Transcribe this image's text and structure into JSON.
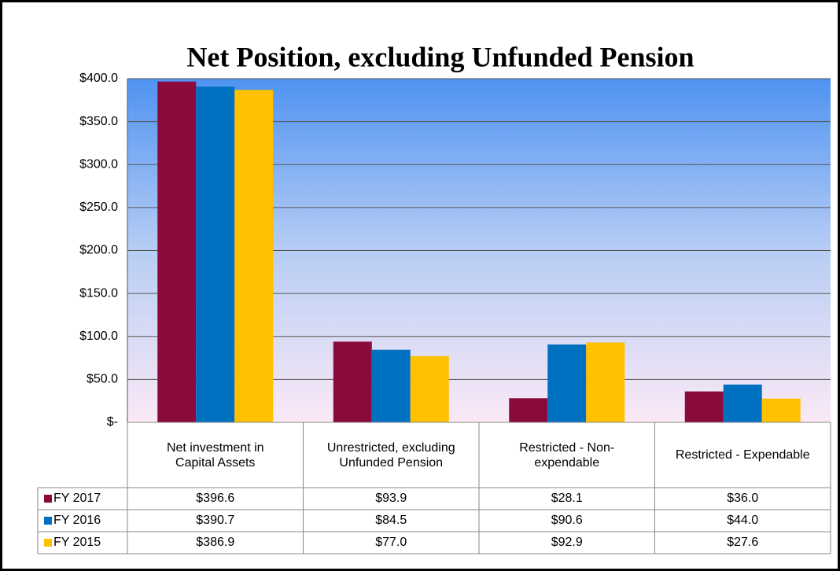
{
  "chart_data": {
    "type": "bar",
    "title": "Net Position, excluding Unfunded Pension",
    "categories": [
      "Net investment in Capital Assets",
      "Unrestricted, excluding Unfunded Pension",
      "Restricted - Non-expendable",
      "Restricted - Expendable"
    ],
    "series": [
      {
        "name": "FY 2017",
        "color": "#8b0a3c",
        "values": [
          396.6,
          93.9,
          28.1,
          36.0
        ],
        "value_labels": [
          "$396.6",
          "$93.9",
          "$28.1",
          "$36.0"
        ]
      },
      {
        "name": "FY 2016",
        "color": "#0070c0",
        "values": [
          390.7,
          84.5,
          90.6,
          44.0
        ],
        "value_labels": [
          "$390.7",
          "$84.5",
          "$90.6",
          "$44.0"
        ]
      },
      {
        "name": "FY 2015",
        "color": "#ffc000",
        "values": [
          386.9,
          77.0,
          92.9,
          27.6
        ],
        "value_labels": [
          "$386.9",
          "$77.0",
          "$92.9",
          "$27.6"
        ]
      }
    ],
    "ylim": [
      0,
      400
    ],
    "yticks": [
      {
        "value": 0,
        "label": "$-"
      },
      {
        "value": 50,
        "label": "$50.0"
      },
      {
        "value": 100,
        "label": "$100.0"
      },
      {
        "value": 150,
        "label": "$150.0"
      },
      {
        "value": 200,
        "label": "$200.0"
      },
      {
        "value": 250,
        "label": "$250.0"
      },
      {
        "value": 300,
        "label": "$300.0"
      },
      {
        "value": 350,
        "label": "$350.0"
      },
      {
        "value": 400,
        "label": "$400.0"
      }
    ],
    "grid": true
  }
}
